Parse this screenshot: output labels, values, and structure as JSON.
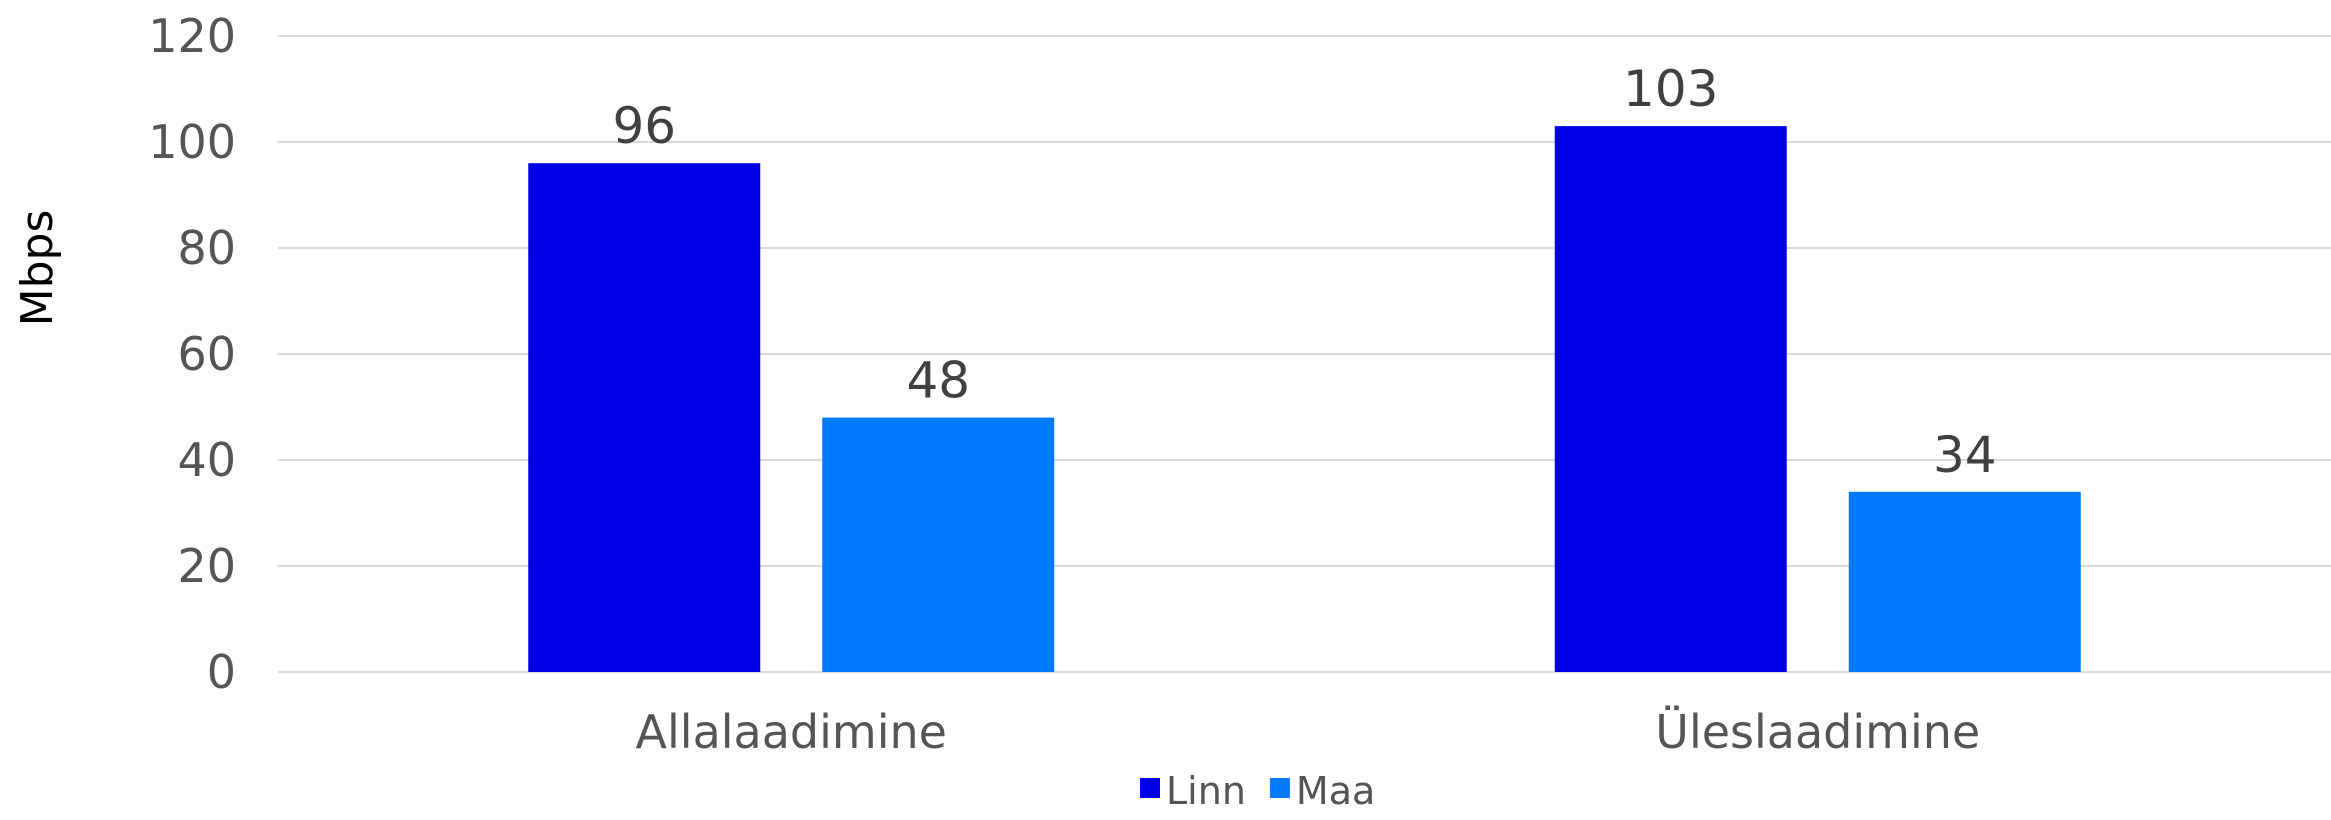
{
  "chart_data": {
    "type": "bar",
    "categories": [
      "Allalaadimine",
      "Üleslaadimine"
    ],
    "series": [
      {
        "name": "Linn",
        "values": [
          96,
          103
        ],
        "color": "#0000E6"
      },
      {
        "name": "Maa",
        "values": [
          48,
          34
        ],
        "color": "#007BFF"
      }
    ],
    "title": "",
    "xlabel": "",
    "ylabel": "Mbps",
    "ylim": [
      0,
      120
    ],
    "yticks": [
      0,
      20,
      40,
      60,
      80,
      100,
      120
    ],
    "grid": true,
    "legend_position": "bottom"
  }
}
